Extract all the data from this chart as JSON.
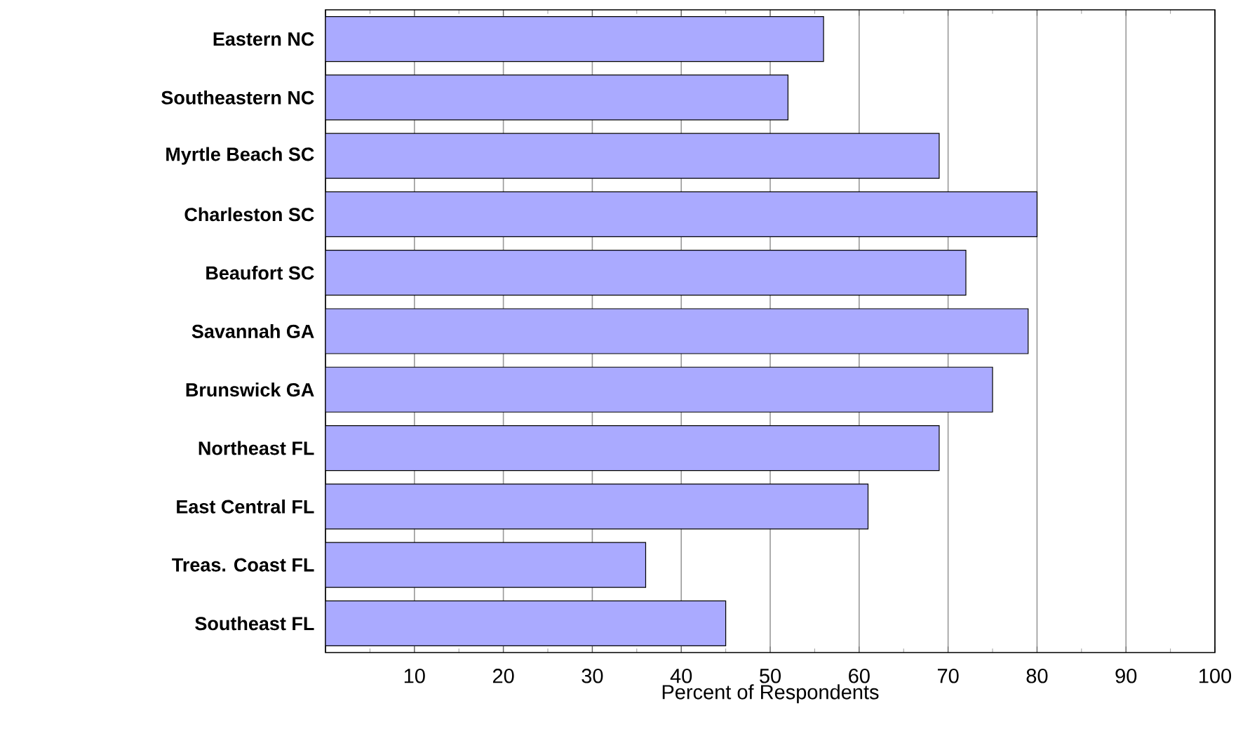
{
  "chart_data": {
    "type": "bar",
    "orientation": "horizontal",
    "xlabel": "Percent of Respondents",
    "categories": [
      "Eastern NC",
      "Southeastern NC",
      "Myrtle Beach SC",
      "Charleston SC",
      "Beaufort SC",
      "Savannah GA",
      "Brunswick GA",
      "Northeast FL",
      "East Central FL",
      "Treas. Coast FL",
      "Southeast FL"
    ],
    "values": [
      56,
      52,
      69,
      80,
      72,
      79,
      75,
      69,
      61,
      36,
      45
    ],
    "color": "#aaaaff",
    "xlim": [
      0,
      100
    ],
    "xticks": [
      {
        "value": 0,
        "label": null
      },
      10,
      20,
      30,
      40,
      50,
      60,
      70,
      80,
      90,
      100
    ],
    "grid": "x"
  }
}
